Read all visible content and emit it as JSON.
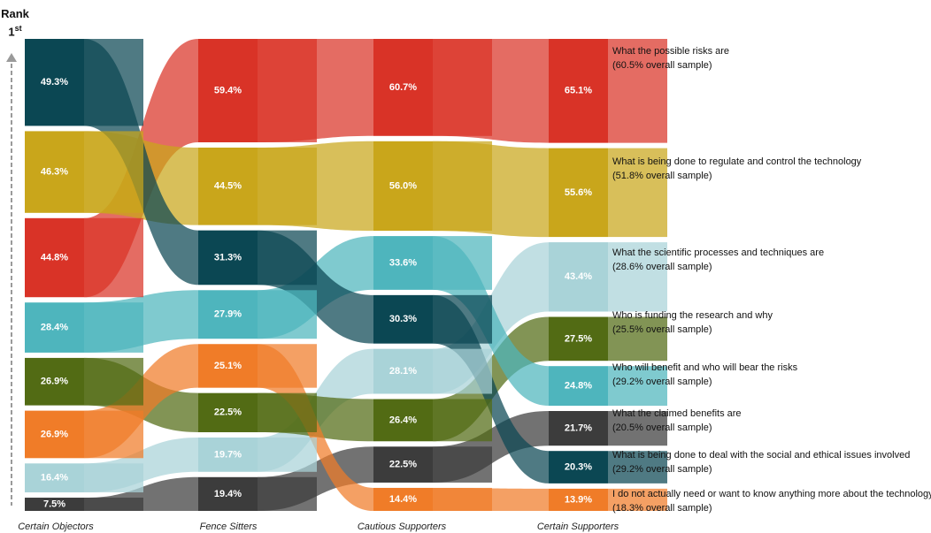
{
  "axis": {
    "rank_label": "Rank",
    "rank_number": "1",
    "rank_suffix": "st"
  },
  "groups": [
    "Certain Objectors",
    "Fence Sitters",
    "Cautious Supporters",
    "Certain Supporters"
  ],
  "legend": [
    {
      "title": "What the possible risks are",
      "overall": "(60.5% overall sample)"
    },
    {
      "title": "What is being done to regulate and control the technology",
      "overall": "(51.8% overall sample)"
    },
    {
      "title": "What the scientific processes and techniques are",
      "overall": "(28.6% overall sample)"
    },
    {
      "title": "Who is funding the research and why",
      "overall": "(25.5% overall sample)"
    },
    {
      "title": "Who will benefit and who will bear the risks",
      "overall": "(29.2% overall sample)"
    },
    {
      "title": "What the claimed benefits are",
      "overall": "(20.5% overall sample)"
    },
    {
      "title": "What is being done to deal with the social and ethical issues involved",
      "overall": "(29.2% overall sample)"
    },
    {
      "title": "I do not actually need or want to know anything more about the technology",
      "overall": "(18.3% overall sample)"
    }
  ],
  "chart_data": {
    "type": "sankey",
    "title": "",
    "xlabel": "",
    "ylabel": "Rank",
    "categories": [
      "Certain Objectors",
      "Fence Sitters",
      "Cautious Supporters",
      "Certain Supporters"
    ],
    "series": [
      {
        "name": "What the possible risks are",
        "color": "#d93327",
        "values": [
          44.8,
          59.4,
          60.7,
          65.1
        ],
        "labels": [
          "44.8%",
          "59.4%",
          "60.7%",
          "65.1%"
        ],
        "ranks": [
          3,
          1,
          1,
          1
        ]
      },
      {
        "name": "What is being done to regulate and control the technology",
        "color": "#c9a61b",
        "values": [
          46.3,
          44.5,
          56.0,
          55.6
        ],
        "labels": [
          "46.3%",
          "44.5%",
          "56.0%",
          "55.6%"
        ],
        "ranks": [
          2,
          2,
          2,
          2
        ]
      },
      {
        "name": "What the scientific processes and techniques are",
        "color": "#a9d3d8",
        "values": [
          16.4,
          19.7,
          28.1,
          43.4
        ],
        "labels": [
          "16.4%",
          "19.7%",
          "28.1%",
          "43.4%"
        ],
        "ranks": [
          7,
          7,
          5,
          3
        ]
      },
      {
        "name": "Who is funding the research and why",
        "color": "#526b14",
        "values": [
          26.9,
          22.5,
          26.4,
          27.5
        ],
        "labels": [
          "26.9%",
          "22.5%",
          "26.4%",
          "27.5%"
        ],
        "ranks": [
          5,
          6,
          6,
          4
        ]
      },
      {
        "name": "Who will benefit and who will bear the risks",
        "color": "#4eb5bd",
        "values": [
          28.4,
          27.9,
          33.6,
          24.8
        ],
        "labels": [
          "28.4%",
          "27.9%",
          "33.6%",
          "24.8%"
        ],
        "ranks": [
          4,
          4,
          3,
          5
        ]
      },
      {
        "name": "What the claimed benefits are",
        "color": "#3c3c3c",
        "values": [
          7.5,
          19.4,
          22.5,
          21.7
        ],
        "labels": [
          "7.5%",
          "19.4%",
          "22.5%",
          "21.7%"
        ],
        "ranks": [
          8,
          8,
          7,
          6
        ]
      },
      {
        "name": "What is being done to deal with the social and ethical issues involved",
        "color": "#0b4753",
        "values": [
          49.3,
          31.3,
          30.3,
          20.3
        ],
        "labels": [
          "49.3%",
          "31.3%",
          "30.3%",
          "20.3%"
        ],
        "ranks": [
          1,
          3,
          4,
          7
        ]
      },
      {
        "name": "I do not actually need or want to know anything more about the technology",
        "color": "#f07c28",
        "values": [
          26.9,
          25.1,
          14.4,
          13.9
        ],
        "labels": [
          "26.9%",
          "25.1%",
          "14.4%",
          "13.9%"
        ],
        "ranks": [
          6,
          5,
          8,
          8
        ]
      }
    ]
  }
}
